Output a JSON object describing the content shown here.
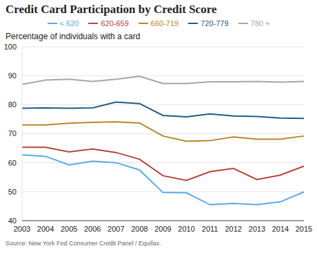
{
  "chart_data": {
    "type": "line",
    "title": "Credit Card Participation by Credit Score",
    "subtitle": "Percentage of individuals with a card",
    "source": "Source: New York Fed Consumer Credit Panel / Equifax.",
    "categories": [
      "2003",
      "2004",
      "2005",
      "2006",
      "2007",
      "2008",
      "2009",
      "2010",
      "2011",
      "2012",
      "2013",
      "2014",
      "2015"
    ],
    "series": [
      {
        "name": "< 620",
        "color": "#5aa9e6",
        "values": [
          62.7,
          62.2,
          59.2,
          60.5,
          60.0,
          57.5,
          49.7,
          49.6,
          45.5,
          45.9,
          45.5,
          46.5,
          49.9
        ]
      },
      {
        "name": "620-659",
        "color": "#b5443a",
        "values": [
          65.3,
          65.3,
          63.7,
          64.7,
          63.5,
          61.2,
          55.5,
          53.9,
          56.9,
          58.0,
          54.2,
          55.7,
          58.8
        ]
      },
      {
        "name": "660-719",
        "color": "#b8862b",
        "values": [
          73.0,
          73.0,
          73.6,
          73.9,
          74.1,
          73.7,
          69.2,
          67.4,
          67.6,
          68.9,
          68.1,
          68.1,
          69.2
        ]
      },
      {
        "name": "720-779",
        "color": "#1f5a8a",
        "values": [
          78.8,
          78.9,
          78.8,
          78.9,
          80.9,
          80.4,
          76.3,
          75.8,
          76.8,
          76.1,
          75.9,
          75.4,
          75.3
        ]
      },
      {
        "name": "780 +",
        "color": "#a6a6a6",
        "values": [
          87.0,
          88.5,
          88.8,
          88.0,
          88.8,
          89.8,
          87.3,
          87.3,
          87.9,
          87.9,
          88.0,
          87.8,
          88.0
        ]
      }
    ],
    "ylim": [
      40,
      100
    ],
    "yticks": [
      40,
      50,
      60,
      70,
      80,
      90,
      100
    ],
    "grid": true,
    "legend": "top"
  }
}
